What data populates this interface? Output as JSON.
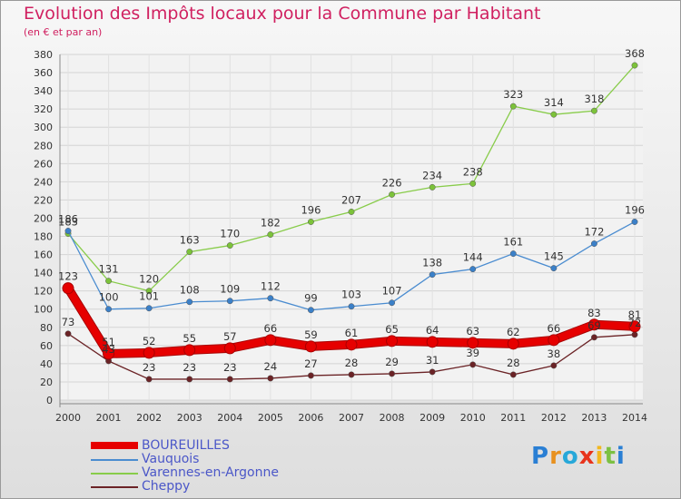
{
  "title": "Evolution des Impôts locaux pour la Commune par Habitant",
  "subtitle": "(en € et par an)",
  "brand": {
    "text": "Proxiti",
    "letter_colors": [
      "#2a7fd4",
      "#e8911f",
      "#27a8d9",
      "#e8341c",
      "#f2b81f",
      "#7cc043",
      "#2a7fd4"
    ]
  },
  "chart_data": {
    "type": "line",
    "title": "Evolution des Impôts locaux pour la Commune par Habitant",
    "subtitle": "(en € et par an)",
    "x": [
      "2000",
      "2001",
      "2002",
      "2003",
      "2004",
      "2005",
      "2006",
      "2007",
      "2008",
      "2009",
      "2010",
      "2011",
      "2012",
      "2013",
      "2014"
    ],
    "ylim": [
      0,
      380
    ],
    "yticks": [
      0,
      20,
      40,
      60,
      80,
      100,
      120,
      140,
      160,
      180,
      200,
      220,
      240,
      260,
      280,
      300,
      320,
      340,
      360,
      380
    ],
    "grid": true,
    "legend": "bottom-left",
    "series": [
      {
        "name": "Varennes-en-Argonne",
        "color": "#88cc4a",
        "point_color": "#7cc23a",
        "values": [
          183,
          131,
          120,
          163,
          170,
          182,
          196,
          207,
          226,
          234,
          238,
          323,
          314,
          318,
          368
        ],
        "labels": [
          "183",
          "131",
          "120",
          "163",
          "170",
          "182",
          "196",
          "207",
          "226",
          "234",
          "238",
          "323",
          "314",
          "318",
          "368"
        ]
      },
      {
        "name": "Vauquois",
        "color": "#4a8cd0",
        "point_color": "#3b80c8",
        "values": [
          186,
          100,
          101,
          108,
          109,
          112,
          99,
          103,
          107,
          138,
          144,
          161,
          145,
          172,
          196
        ],
        "labels": [
          "186",
          "100",
          "101",
          "108",
          "109",
          "112",
          "99",
          "103",
          "107",
          "138",
          "144",
          "161",
          "145",
          "172",
          "196"
        ]
      },
      {
        "name": "Cheppy",
        "color": "#6b2326",
        "point_color": "#6b2326",
        "values": [
          73,
          43,
          23,
          23,
          23,
          24,
          27,
          28,
          29,
          31,
          39,
          28,
          38,
          69,
          72
        ],
        "labels": [
          "73",
          "43",
          "23",
          "23",
          "23",
          "24",
          "27",
          "28",
          "29",
          "31",
          "39",
          "28",
          "38",
          "69",
          "72"
        ]
      },
      {
        "name": "BOUREUILLES",
        "color": "#e60000",
        "point_color": "#e60000",
        "values": [
          123,
          51,
          52,
          55,
          57,
          66,
          59,
          61,
          65,
          64,
          63,
          62,
          66,
          83,
          81
        ],
        "labels": [
          "123",
          "51",
          "52",
          "55",
          "57",
          "66",
          "59",
          "61",
          "65",
          "64",
          "63",
          "62",
          "66",
          "83",
          "81"
        ]
      }
    ],
    "legend_entries": [
      "BOUREUILLES",
      "Vauquois",
      "Varennes-en-Argonne",
      "Cheppy"
    ]
  }
}
